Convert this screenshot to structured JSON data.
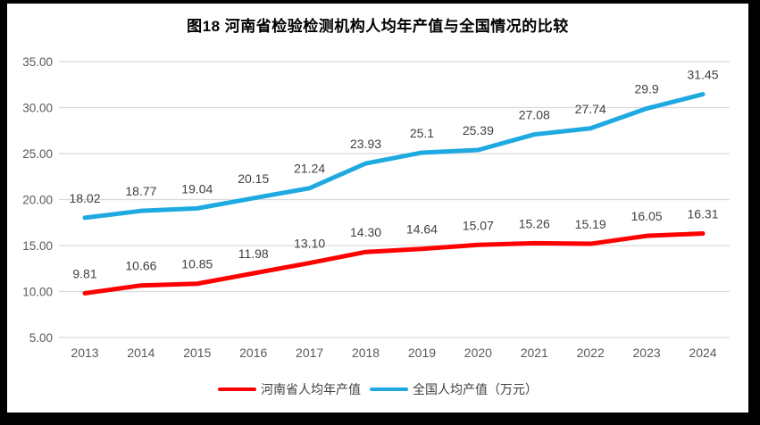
{
  "frame": {
    "border_color": "#000000",
    "background": "#ffffff"
  },
  "colors": {
    "henan_line": "#FF0000",
    "national_line": "#1EAAE1",
    "gridline": "#D9D9D9",
    "axis_text": "#595959",
    "data_label_text": "#404040",
    "title_text": "#000000"
  },
  "chart_data": {
    "type": "line",
    "title": "图18  河南省检验检测机构人均年产值与全国情况的比较",
    "categories": [
      "2013",
      "2014",
      "2015",
      "2016",
      "2017",
      "2018",
      "2019",
      "2020",
      "2021",
      "2022",
      "2023",
      "2024"
    ],
    "series": [
      {
        "name": "河南省人均年产值",
        "color": "#FF0000",
        "values": [
          9.81,
          10.66,
          10.85,
          11.98,
          13.1,
          14.3,
          14.64,
          15.07,
          15.26,
          15.19,
          16.05,
          16.31
        ],
        "labels": [
          "9.81",
          "10.66",
          "10.85",
          "11.98",
          "13.10",
          "14.30",
          "14.64",
          "15.07",
          "15.26",
          "15.19",
          "16.05",
          "16.31"
        ]
      },
      {
        "name": "全国人均产值（万元）",
        "color": "#1EAAE1",
        "values": [
          18.02,
          18.77,
          19.04,
          20.15,
          21.24,
          23.93,
          25.1,
          25.39,
          27.08,
          27.74,
          29.9,
          31.45
        ],
        "labels": [
          "18.02",
          "18.77",
          "19.04",
          "20.15",
          "21.24",
          "23.93",
          "25.1",
          "25.39",
          "27.08",
          "27.74",
          "29.9",
          "31.45"
        ]
      }
    ],
    "ylim": [
      5,
      35
    ],
    "ytick_step": 5,
    "ytick_labels": [
      "5.00",
      "10.00",
      "15.00",
      "20.00",
      "25.00",
      "30.00",
      "35.00"
    ],
    "grid": true,
    "legend_position": "bottom"
  }
}
